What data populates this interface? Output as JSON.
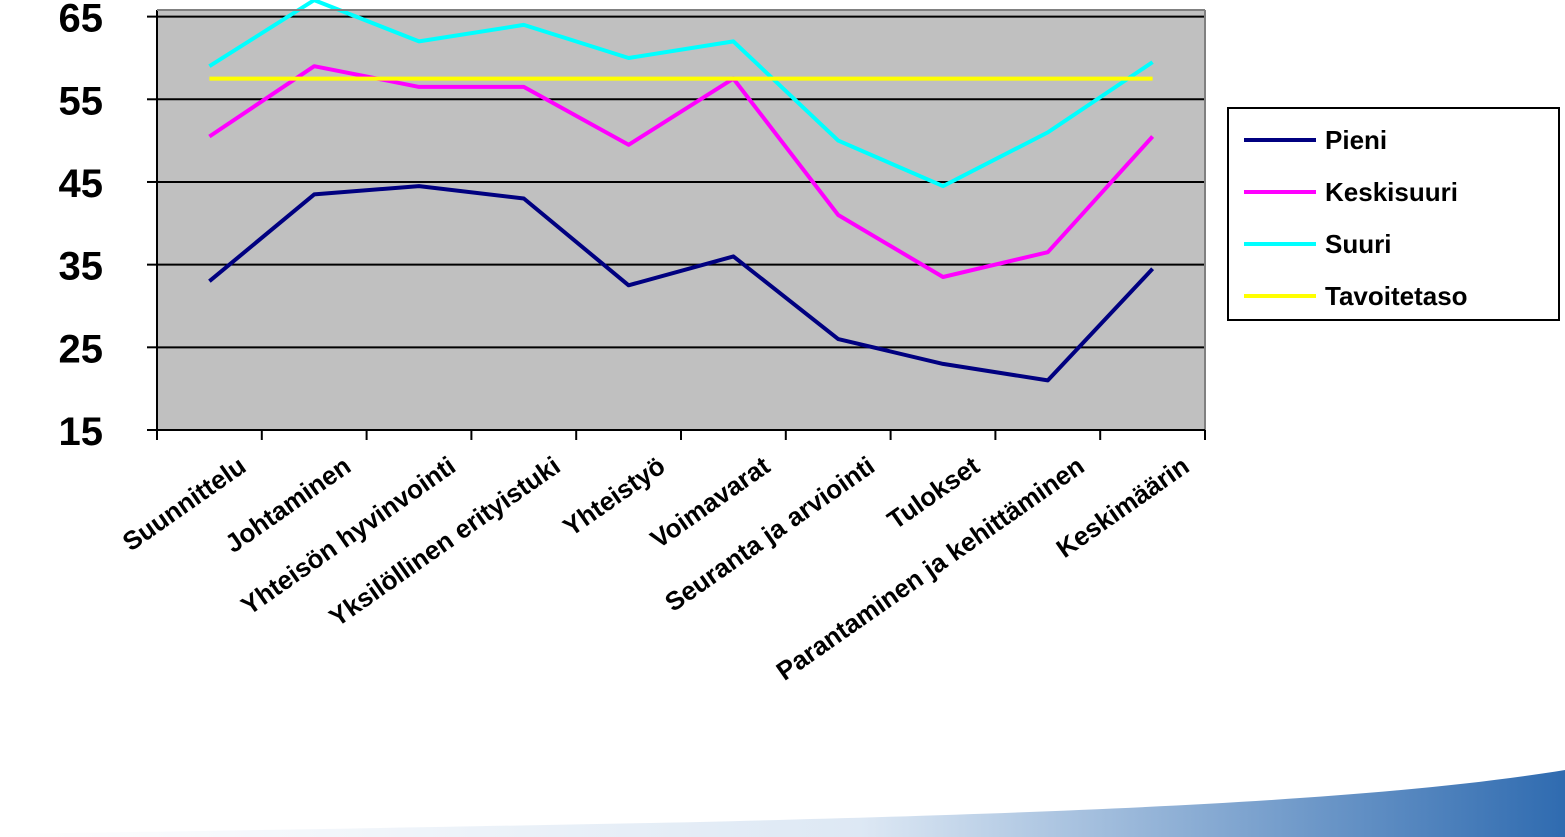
{
  "chart_data": {
    "type": "line",
    "categories": [
      "Suunnittelu",
      "Johtaminen",
      "Yhteisön hyvinvointi",
      "Yksilöllinen erityistuki",
      "Yhteistyö",
      "Voimavarat",
      "Seuranta ja arviointi",
      "Tulokset",
      "Parantaminen ja kehittäminen",
      "Keskimäärin"
    ],
    "series": [
      {
        "name": "Pieni",
        "color": "#000080",
        "values": [
          33,
          43.5,
          44.5,
          43,
          32.5,
          36,
          26,
          23,
          21,
          34.5
        ]
      },
      {
        "name": "Keskisuuri",
        "color": "#ff00ff",
        "values": [
          50.5,
          59,
          56.5,
          56.5,
          49.5,
          57.5,
          41,
          33.5,
          36.5,
          50.5
        ]
      },
      {
        "name": "Suuri",
        "color": "#00ffff",
        "values": [
          59,
          67,
          62,
          64,
          60,
          62,
          50,
          44.5,
          51,
          59.5
        ]
      },
      {
        "name": "Tavoitetaso",
        "color": "#ffff00",
        "values": [
          57.5,
          57.5,
          57.5,
          57.5,
          57.5,
          57.5,
          57.5,
          57.5,
          57.5,
          57.5
        ]
      }
    ],
    "ylim": [
      15,
      65
    ],
    "yticks": [
      15,
      25,
      35,
      45,
      55,
      65
    ],
    "grid": true,
    "legend_position": "right",
    "plot_background": "#c0c0c0"
  }
}
